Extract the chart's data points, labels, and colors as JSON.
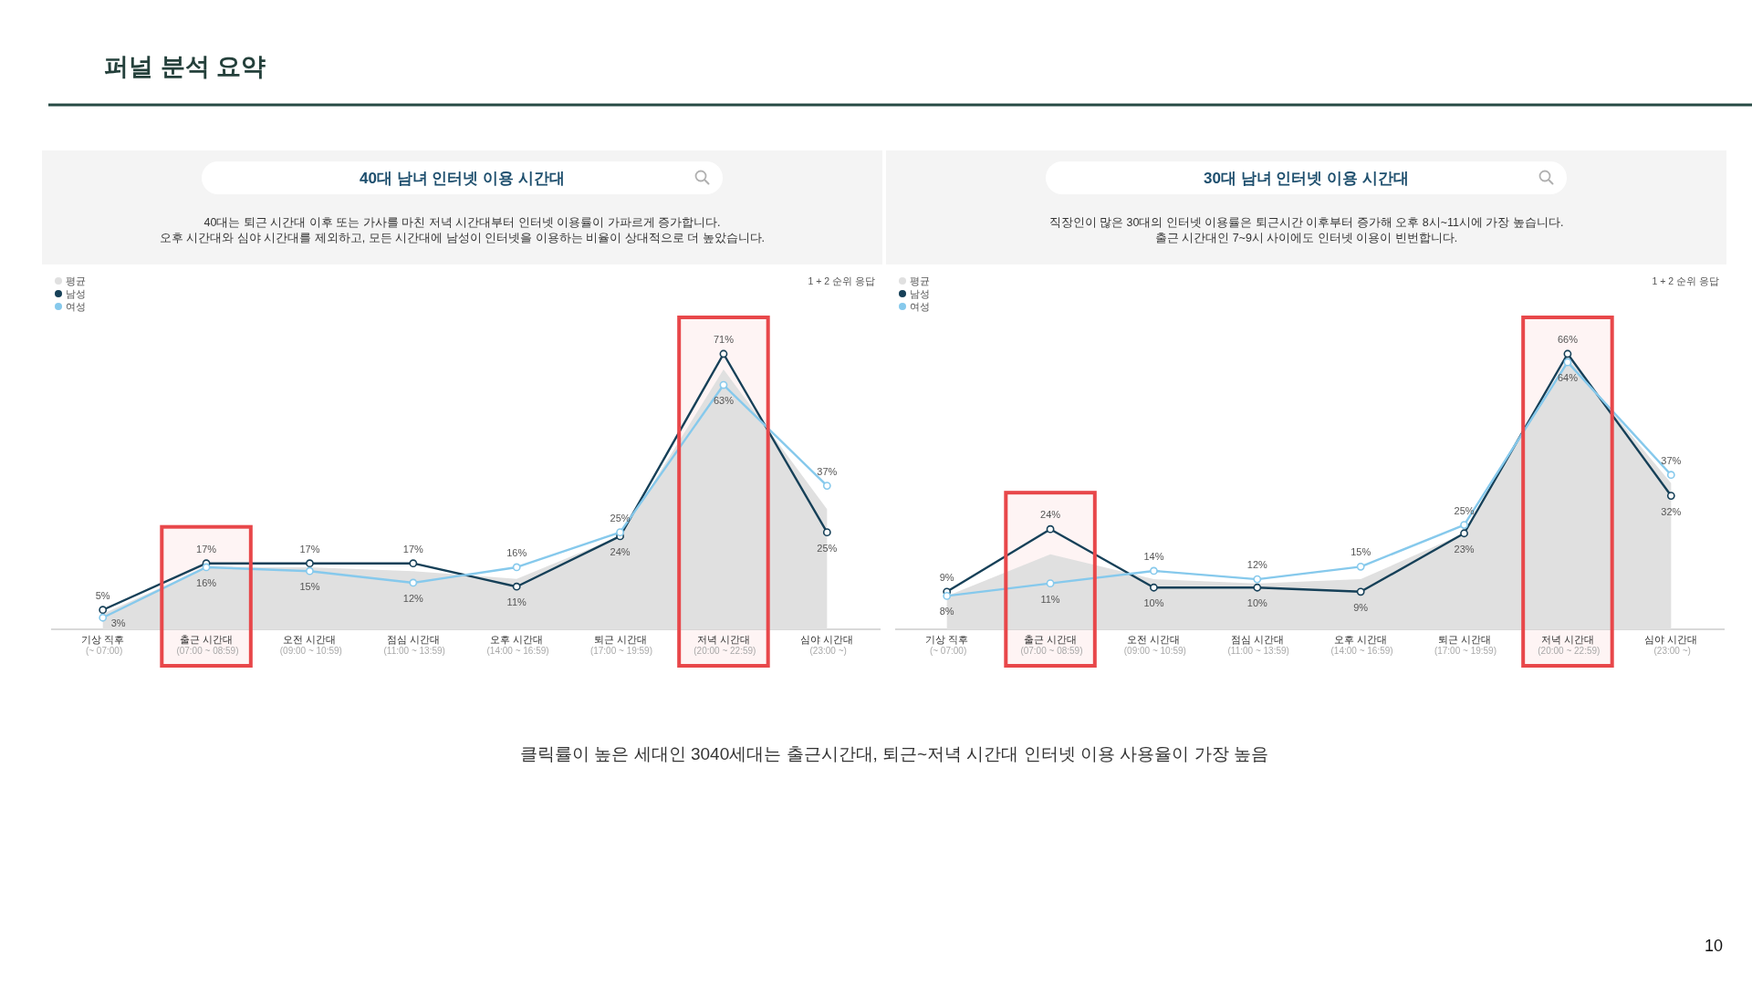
{
  "chart_data": [
    {
      "type": "other",
      "title": "퍼널 분석 요약",
      "annotations": [
        "클릭률이 높은 세대인 3040세대는 출근시간대, 퇴근~저녁 시간대 인터넷 이용 사용율이 가장 높음",
        "10"
      ]
    },
    {
      "type": "line",
      "title": "40대 남녀 인터넷 이용 시간대",
      "subtitle": "40대는 퇴근 시간대 이후 또는 가사를 마친 저녁 시간대부터 인터넷 이용률이 가파르게 증가합니다.\n오후 시간대와 심야 시간대를 제외하고, 모든 시간대에 남성이 인터넷을 이용하는 비율이 상대적으로 더 높았습니다.",
      "annotations": [
        "1 + 2 순위 응답"
      ],
      "categories": [
        "기상 직후\n(~ 07:00)",
        "출근 시간대\n(07:00 ~ 08:59)",
        "오전 시간대\n(09:00 ~ 10:59)",
        "점심 시간대\n(11:00 ~ 13:59)",
        "오후 시간대\n(14:00 ~ 16:59)",
        "퇴근 시간대\n(17:00 ~ 19:59)",
        "저녁 시간대\n(20:00 ~ 22:59)",
        "심야 시간대\n(23:00 ~)"
      ],
      "series": [
        {
          "name": "평균",
          "type": "area",
          "color": "#e0e0e0",
          "values": [
            4,
            16,
            16,
            15,
            13,
            24,
            67,
            31
          ]
        },
        {
          "name": "남성",
          "color": "#164058",
          "marker": "circle",
          "values": [
            5,
            17,
            17,
            17,
            11,
            24,
            71,
            25
          ],
          "value_labels": [
            "5%",
            "17%",
            "17%",
            "17%",
            "11%",
            "24%",
            "71%",
            "25%"
          ]
        },
        {
          "name": "여성",
          "color": "#86c9ec",
          "marker": "circle",
          "values": [
            3,
            16,
            15,
            12,
            16,
            25,
            63,
            37
          ],
          "value_labels": [
            "3%",
            "16%",
            "15%",
            "12%",
            "16%",
            "25%",
            "63%",
            "37%"
          ]
        }
      ],
      "legend": "top left",
      "tick_labels": "x",
      "bands": [
        {
          "axis": "x",
          "from": "출근 시간대\n(07:00 ~ 08:59)",
          "to": "출근 시간대\n(07:00 ~ 08:59)",
          "color": "#e8474a"
        },
        {
          "axis": "x",
          "from": "저녁 시간대\n(20:00 ~ 22:59)",
          "to": "저녁 시간대\n(20:00 ~ 22:59)",
          "color": "#e8474a"
        }
      ]
    },
    {
      "type": "line",
      "title": "30대 남녀 인터넷 이용 시간대",
      "subtitle": "직장인이 많은 30대의 인터넷 이용률은 퇴근시간 이후부터 증가해 오후 8시~11시에 가장 높습니다.\n출근 시간대인 7~9시 사이에도 인터넷 이용이 빈번합니다.",
      "annotations": [
        "1 + 2 순위 응답"
      ],
      "categories": [
        "기상 직후\n(~ 07:00)",
        "출근 시간대\n(07:00 ~ 08:59)",
        "오전 시간대\n(09:00 ~ 10:59)",
        "점심 시간대\n(11:00 ~ 13:59)",
        "오후 시간대\n(14:00 ~ 16:59)",
        "퇴근 시간대\n(17:00 ~ 19:59)",
        "저녁 시간대\n(20:00 ~ 22:59)",
        "심야 시간대\n(23:00 ~)"
      ],
      "series": [
        {
          "name": "평균",
          "type": "area",
          "color": "#e0e0e0",
          "values": [
            8,
            18,
            12,
            11,
            12,
            23,
            65,
            35
          ]
        },
        {
          "name": "남성",
          "color": "#164058",
          "marker": "circle",
          "values": [
            9,
            24,
            10,
            10,
            9,
            23,
            66,
            32
          ],
          "value_labels": [
            "9%",
            "24%",
            "10%",
            "10%",
            "9%",
            "23%",
            "66%",
            "32%"
          ]
        },
        {
          "name": "여성",
          "color": "#86c9ec",
          "marker": "circle",
          "values": [
            8,
            11,
            14,
            12,
            15,
            25,
            64,
            37
          ],
          "value_labels": [
            "8%",
            "11%",
            "14%",
            "12%",
            "15%",
            "25%",
            "64%",
            "37%"
          ]
        }
      ],
      "legend": "top left",
      "tick_labels": "x",
      "bands": [
        {
          "axis": "x",
          "from": "출근 시간대\n(07:00 ~ 08:59)",
          "to": "출근 시간대\n(07:00 ~ 08:59)",
          "color": "#e8474a"
        },
        {
          "axis": "x",
          "from": "저녁 시간대\n(20:00 ~ 22:59)",
          "to": "저녁 시간대\n(20:00 ~ 22:59)",
          "color": "#e8474a"
        }
      ]
    }
  ]
}
